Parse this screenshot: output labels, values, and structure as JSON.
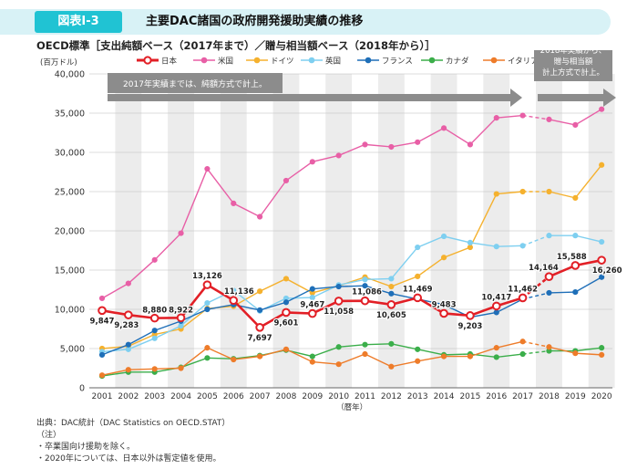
{
  "header": {
    "badge": "図表Ⅰ-3",
    "title": "主要DAC諸国の政府開発援助実績の推移"
  },
  "chart_data": {
    "type": "line",
    "title": "OECD標準［支出純額ベース（2017年まで）／贈与相当額ベース（2018年から）］",
    "ylabel": "(百万ドル)",
    "xlabel": "（暦年）",
    "ylim": [
      0,
      40000
    ],
    "yticks": [
      "0",
      "5,000",
      "10,000",
      "15,000",
      "20,000",
      "25,000",
      "30,000",
      "35,000",
      "40,000"
    ],
    "x": [
      "2001",
      "2002",
      "2003",
      "2004",
      "2005",
      "2006",
      "2007",
      "2008",
      "2009",
      "2010",
      "2011",
      "2012",
      "2013",
      "2014",
      "2015",
      "2016",
      "2017",
      "2018",
      "2019",
      "2020"
    ],
    "grid": "shaded columns",
    "legend": "top",
    "series": [
      {
        "name": "米国",
        "color": "#e85fa6",
        "values": [
          11400,
          13300,
          16300,
          19700,
          27900,
          23500,
          21800,
          26400,
          28800,
          29600,
          31000,
          30700,
          31300,
          33100,
          31000,
          34400,
          34700,
          34200,
          33500,
          35500
        ]
      },
      {
        "name": "ドイツ",
        "color": "#f5b12e",
        "values": [
          5000,
          5300,
          6800,
          7500,
          10100,
          10400,
          12300,
          13900,
          12100,
          13000,
          14100,
          12900,
          14200,
          16600,
          17900,
          24700,
          25000,
          25000,
          24200,
          28400
        ]
      },
      {
        "name": "英国",
        "color": "#7ecff0",
        "values": [
          4600,
          4900,
          6300,
          7900,
          10800,
          12400,
          9800,
          11400,
          11500,
          13100,
          13800,
          13900,
          17900,
          19300,
          18500,
          18000,
          18100,
          19400,
          19400,
          18600
        ]
      },
      {
        "name": "フランス",
        "color": "#1f6fb8",
        "values": [
          4200,
          5500,
          7300,
          8500,
          10000,
          10600,
          9900,
          10900,
          12600,
          12900,
          13000,
          12000,
          11300,
          10600,
          9000,
          9600,
          11300,
          12100,
          12200,
          14100
        ]
      },
      {
        "name": "カナダ",
        "color": "#3bae4a",
        "values": [
          1500,
          2000,
          2000,
          2600,
          3800,
          3700,
          4100,
          4800,
          4000,
          5200,
          5500,
          5600,
          4900,
          4200,
          4300,
          3900,
          4300,
          4700,
          4700,
          5100
        ]
      },
      {
        "name": "イタリア",
        "color": "#ee7c2a",
        "values": [
          1600,
          2300,
          2400,
          2500,
          5100,
          3600,
          4000,
          4900,
          3300,
          3000,
          4300,
          2700,
          3400,
          4000,
          4000,
          5100,
          5900,
          5200,
          4400,
          4200
        ]
      },
      {
        "name": "日本",
        "color": "#e21f26",
        "values": [
          9847,
          9283,
          8880,
          8922,
          13126,
          11136,
          7697,
          9601,
          9467,
          11058,
          11086,
          10605,
          11469,
          9483,
          9203,
          10417,
          11462,
          14164,
          15588,
          16260
        ]
      }
    ],
    "japan_labels": [
      "9,847",
      "9,283",
      "8,880",
      "8,922",
      "13,126",
      "11,136",
      "7,697",
      "9,601",
      "9,467",
      "11,058",
      "11,086",
      "10,605",
      "11,469",
      "9,483",
      "9,203",
      "10,417",
      "11,462",
      "14,164",
      "15,588",
      "16,260"
    ],
    "annotations": {
      "left_arrow": "2017年実績までは、純額方式で計上。",
      "right_box": [
        "2018年実績から、",
        "贈与相当額",
        "計上方式で計上。"
      ]
    }
  },
  "source": {
    "line1": "出典：DAC統計（DAC Statistics on OECD.STAT）",
    "line2": "（注）",
    "line3": "・卒業国向け援助を除く。",
    "line4": "・2020年については、日本以外は暫定値を使用。"
  }
}
